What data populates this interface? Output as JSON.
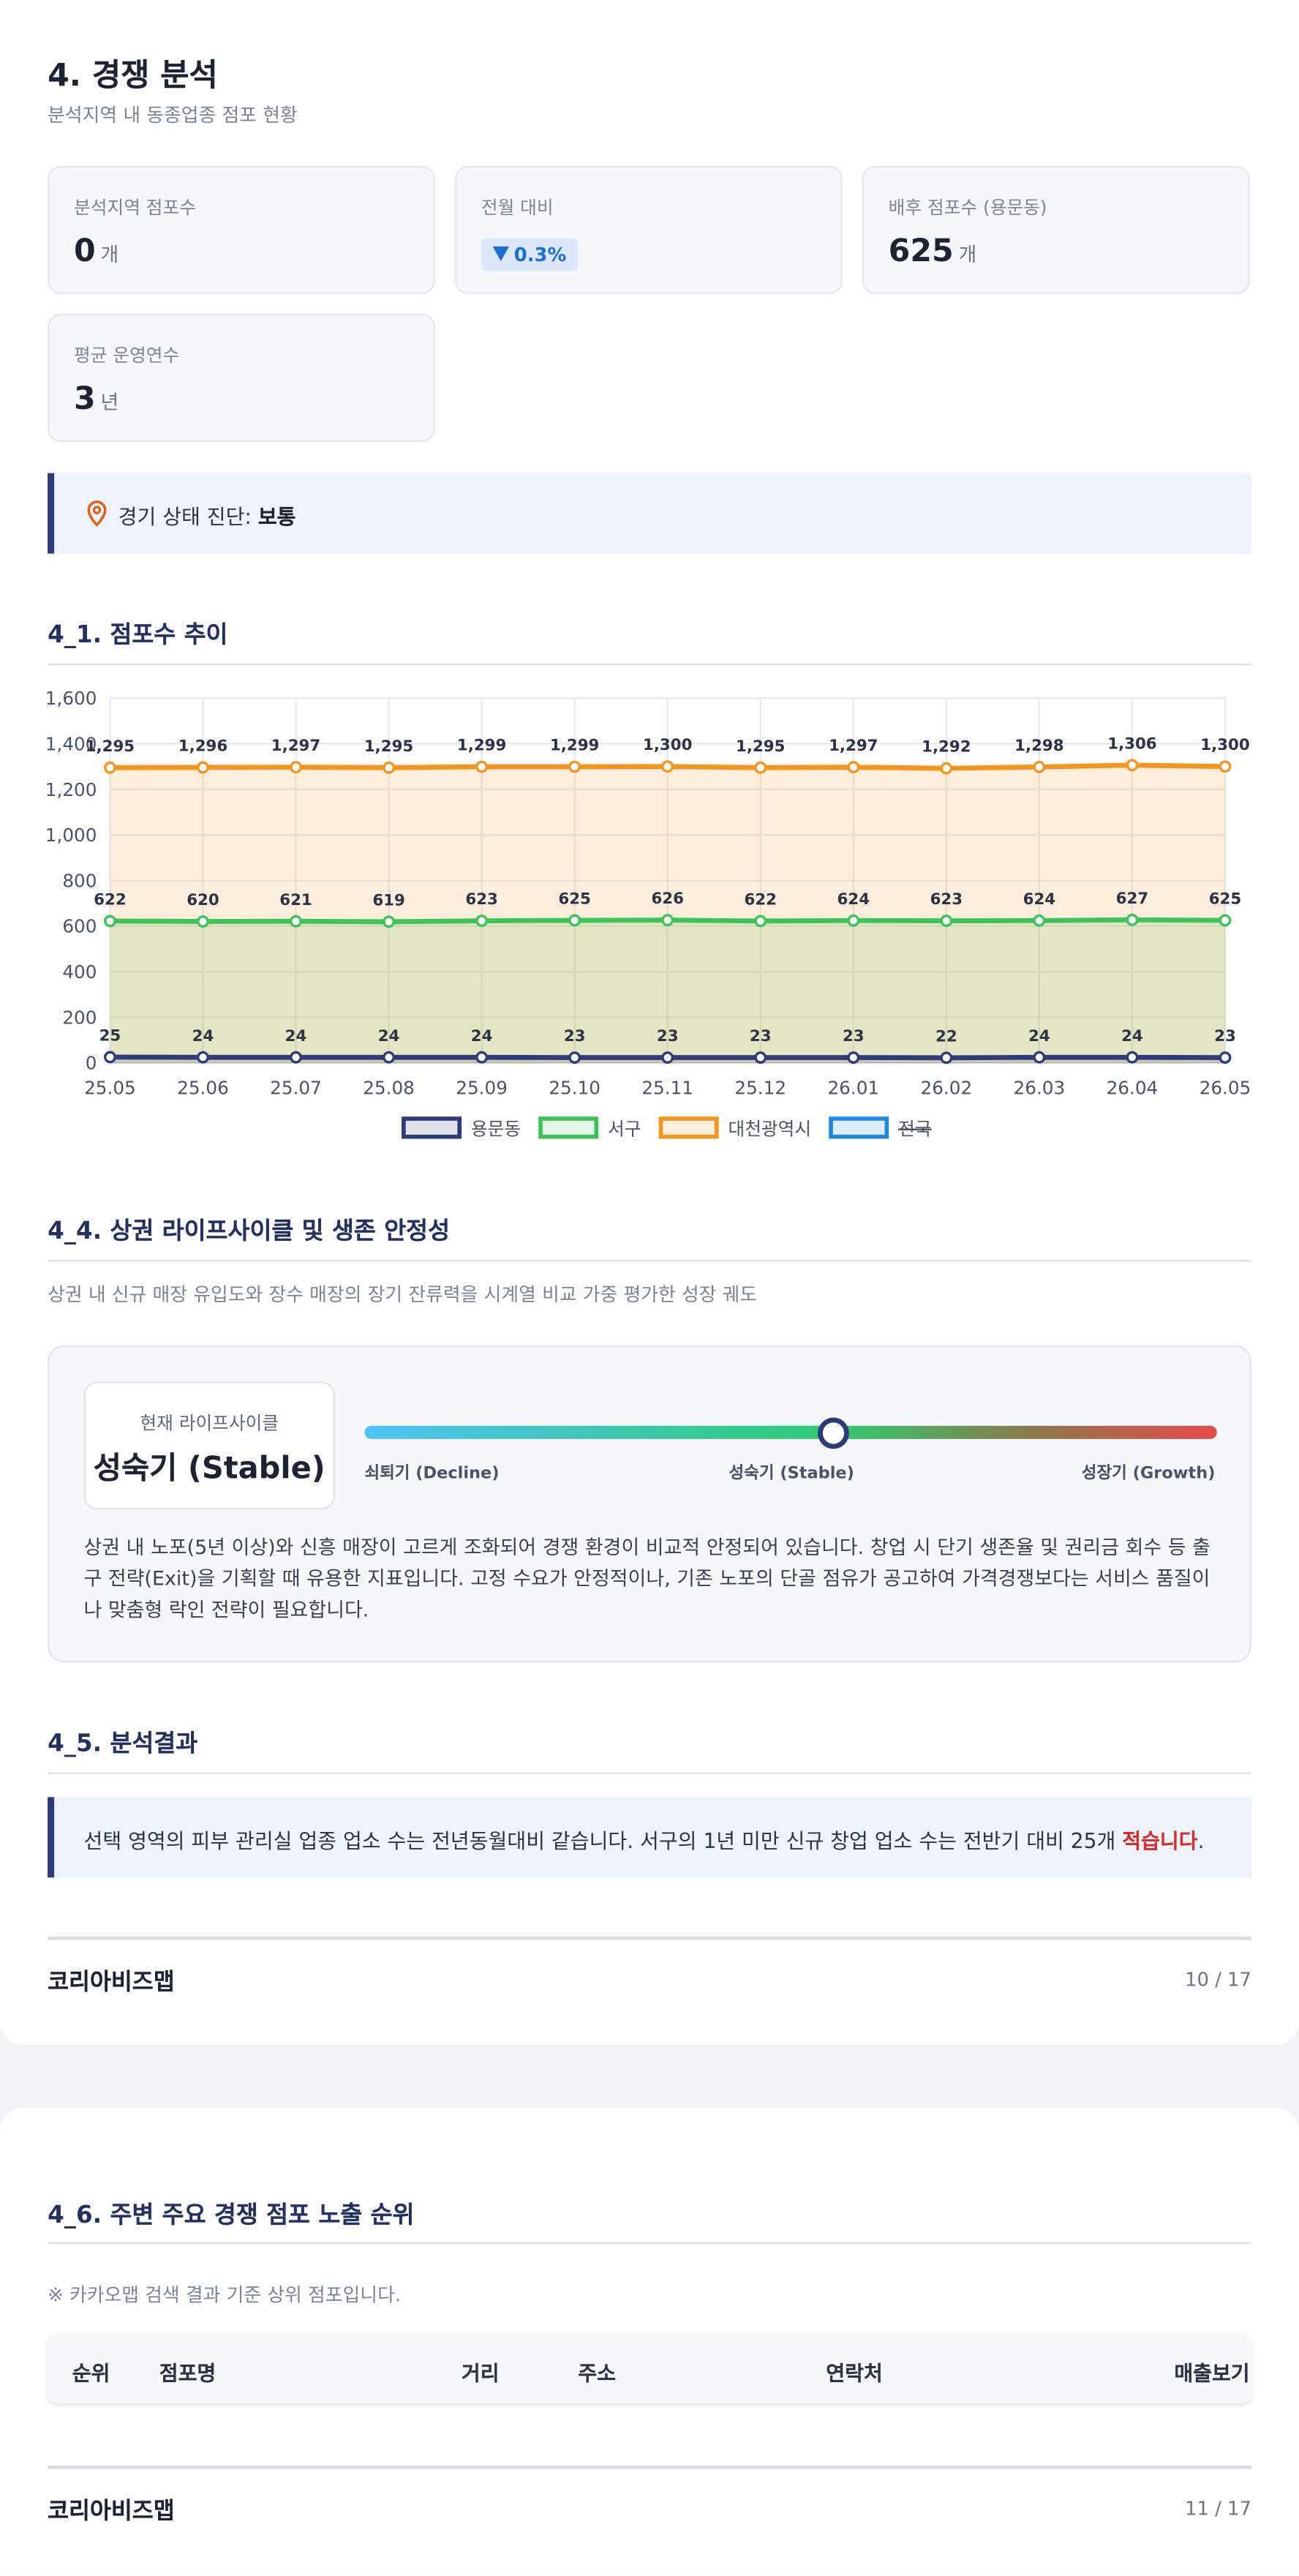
{
  "header": {
    "title": "4. 경쟁 분석",
    "subtitle": "분석지역 내 동종업종 점포 현황"
  },
  "stats": [
    {
      "label": "분석지역 점포수",
      "value": 0,
      "unit": "개"
    },
    {
      "label": "전월 대비",
      "badge": "0.3%"
    },
    {
      "label": "배후 점포수 (용문동)",
      "value": 625,
      "unit": "개"
    },
    {
      "label": "평균 운영연수",
      "value": 3,
      "unit": "년"
    }
  ],
  "diagnosis": {
    "label": "경기 상태 진단: ",
    "value": "보통"
  },
  "chart_data": {
    "type": "line",
    "title": "4_1. 점포수 추이",
    "categories": [
      "25.05",
      "25.06",
      "25.07",
      "25.08",
      "25.09",
      "25.10",
      "25.11",
      "25.12",
      "26.01",
      "26.02",
      "26.03",
      "26.04",
      "26.05"
    ],
    "series": [
      {
        "name": "용문동",
        "color": "#2d3a7c",
        "values": [
          25,
          24,
          24,
          24,
          24,
          23,
          23,
          23,
          23,
          22,
          24,
          24,
          23
        ]
      },
      {
        "name": "서구",
        "color": "#3cc45a",
        "values": [
          622,
          620,
          621,
          619,
          623,
          625,
          626,
          622,
          624,
          623,
          624,
          627,
          625
        ]
      },
      {
        "name": "대천광역시",
        "color": "#f7941d",
        "values": [
          1295,
          1296,
          1297,
          1295,
          1299,
          1299,
          1300,
          1295,
          1297,
          1292,
          1298,
          1306,
          1300
        ],
        "value_labels": [
          "1,295",
          "1,296",
          "1,297",
          "1,295",
          "1,299",
          "1,299",
          "1,300",
          "1,295",
          "1,297",
          "1,292",
          "1,298",
          "1,306",
          "1,300"
        ]
      },
      {
        "name": "전국",
        "color": "#1e88e5",
        "hidden": true,
        "values": [
          null,
          null,
          null,
          null,
          null,
          null,
          null,
          null,
          null,
          null,
          null,
          null,
          null
        ]
      }
    ],
    "ylim": [
      0,
      1600
    ],
    "yticks": [
      0,
      200,
      400,
      600,
      800,
      {
        "value": 1000,
        "label": "1,000"
      },
      {
        "value": 1200,
        "label": "1,200"
      },
      {
        "value": 1400,
        "label": "1,400"
      },
      {
        "value": 1600,
        "label": "1,600"
      }
    ],
    "grid": true,
    "legend": "bottom"
  },
  "lifecycle": {
    "title": "4_4. 상권 라이프사이클 및 생존 안정성",
    "description": "상권 내 신규 매장 유입도와 장수 매장의 장기 잔류력을 시계열 비교 가중 평가한 성장 궤도",
    "current_label": "현재 라이프사이클",
    "current": "성숙기 (Stable)",
    "scale": [
      "쇠퇴기 (Decline)",
      "성숙기 (Stable)",
      "성장기 (Growth)"
    ],
    "text": "상권 내 노포(5년 이상)와 신흥 매장이 고르게 조화되어 경쟁 환경이 비교적 안정되어 있습니다. 창업 시 단기 생존율 및 권리금 회수 등 출구 전략(Exit)을 기획할 때 유용한 지표입니다. 고정 수요가 안정적이나, 기존 노포의 단골 점유가 공고하여 가격경쟁보다는 서비스 품질이나 맞춤형 락인 전략이 필요합니다."
  },
  "result": {
    "title": "4_5. 분석결과",
    "text": "선택 영역의 피부 관리실 업종 업소 수는 전년동월대비 같습니다. 서구의 1년 미만 신규 창업 업소 수는 전반기 대비 25개 ",
    "highlight": "적습니다",
    "end": "."
  },
  "footer1": {
    "brand": "코리아비즈맵",
    "page": "10 / 17"
  },
  "ranking": {
    "title": "4_6. 주변 주요 경쟁 점포 노출 순위",
    "note": "※ 카카오맵 검색 결과 기준 상위 점포입니다.",
    "columns": [
      "순위",
      "점포명",
      "거리",
      "주소",
      "연락처",
      "매출보기"
    ]
  },
  "footer2": {
    "brand": "코리아비즈맵",
    "page": "11 / 17"
  }
}
